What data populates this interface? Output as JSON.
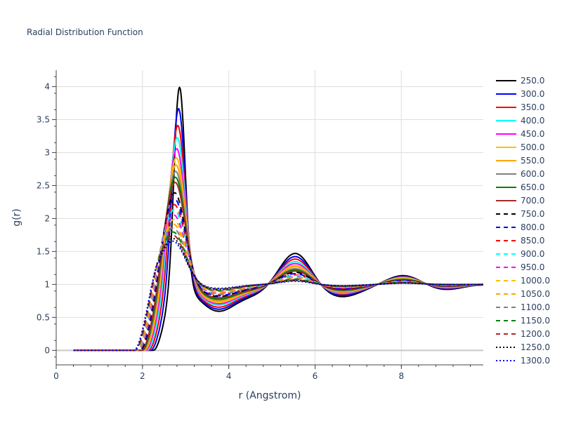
{
  "chart_data": {
    "type": "line",
    "title": "Radial Distribution Function",
    "xlabel": "r (Angstrom)",
    "ylabel": "g(r)",
    "xlim": [
      0,
      9.9
    ],
    "ylim": [
      -0.22,
      4.25
    ],
    "x_ticks": [
      0,
      2,
      4,
      6,
      8
    ],
    "y_ticks": [
      0,
      0.5,
      1,
      1.5,
      2,
      2.5,
      3,
      3.5,
      4
    ],
    "y_tick_labels": [
      "0",
      "0.5",
      "1",
      "1.5",
      "2",
      "2.5",
      "3",
      "3.5",
      "4"
    ],
    "grid": true,
    "legend_position": "right",
    "series": [
      {
        "name": "250.0",
        "color": "#000000",
        "dash": "solid",
        "peak1": 4.03,
        "trough1": 0.6,
        "peak2": 1.49,
        "trough2": 0.81,
        "peak3": 1.14
      },
      {
        "name": "300.0",
        "color": "#0000ff",
        "dash": "solid",
        "peak1": 3.7,
        "trough1": 0.63,
        "peak2": 1.44,
        "trough2": 0.83,
        "peak3": 1.13
      },
      {
        "name": "350.0",
        "color": "#ff0000",
        "dash": "solid",
        "peak1": 3.44,
        "trough1": 0.66,
        "peak2": 1.4,
        "trough2": 0.85,
        "peak3": 1.12
      },
      {
        "name": "400.0",
        "color": "#00ffff",
        "dash": "solid",
        "peak1": 3.25,
        "trough1": 0.69,
        "peak2": 1.36,
        "trough2": 0.86,
        "peak3": 1.11
      },
      {
        "name": "450.0",
        "color": "#ff00ff",
        "dash": "solid",
        "peak1": 3.08,
        "trough1": 0.71,
        "peak2": 1.33,
        "trough2": 0.87,
        "peak3": 1.1
      },
      {
        "name": "500.0",
        "color": "#ffbf00",
        "dash": "solid",
        "peak1": 2.94,
        "trough1": 0.73,
        "peak2": 1.3,
        "trough2": 0.88,
        "peak3": 1.1
      },
      {
        "name": "550.0",
        "color": "#ffa500",
        "dash": "solid",
        "peak1": 2.83,
        "trough1": 0.75,
        "peak2": 1.28,
        "trough2": 0.89,
        "peak3": 1.09
      },
      {
        "name": "600.0",
        "color": "#808080",
        "dash": "solid",
        "peak1": 2.73,
        "trough1": 0.77,
        "peak2": 1.25,
        "trough2": 0.9,
        "peak3": 1.08
      },
      {
        "name": "650.0",
        "color": "#008000",
        "dash": "solid",
        "peak1": 2.64,
        "trough1": 0.78,
        "peak2": 1.23,
        "trough2": 0.91,
        "peak3": 1.08
      },
      {
        "name": "700.0",
        "color": "#a52a2a",
        "dash": "solid",
        "peak1": 2.56,
        "trough1": 0.8,
        "peak2": 1.21,
        "trough2": 0.92,
        "peak3": 1.07
      },
      {
        "name": "750.0",
        "color": "#000000",
        "dash": "dash",
        "peak1": 2.4,
        "trough1": 0.82,
        "peak2": 1.19,
        "trough2": 0.93,
        "peak3": 1.06
      },
      {
        "name": "800.0",
        "color": "#0000ff",
        "dash": "dash",
        "peak1": 2.31,
        "trough1": 0.83,
        "peak2": 1.17,
        "trough2": 0.93,
        "peak3": 1.06
      },
      {
        "name": "850.0",
        "color": "#ff0000",
        "dash": "dash",
        "peak1": 2.22,
        "trough1": 0.85,
        "peak2": 1.15,
        "trough2": 0.94,
        "peak3": 1.05
      },
      {
        "name": "900.0",
        "color": "#00ffff",
        "dash": "dash",
        "peak1": 2.14,
        "trough1": 0.86,
        "peak2": 1.14,
        "trough2": 0.95,
        "peak3": 1.05
      },
      {
        "name": "950.0",
        "color": "#ff00ff",
        "dash": "dash",
        "peak1": 2.06,
        "trough1": 0.87,
        "peak2": 1.12,
        "trough2": 0.95,
        "peak3": 1.04
      },
      {
        "name": "1000.0",
        "color": "#ffbf00",
        "dash": "dash",
        "peak1": 1.99,
        "trough1": 0.88,
        "peak2": 1.11,
        "trough2": 0.96,
        "peak3": 1.04
      },
      {
        "name": "1050.0",
        "color": "#ffa500",
        "dash": "dash",
        "peak1": 1.92,
        "trough1": 0.89,
        "peak2": 1.1,
        "trough2": 0.96,
        "peak3": 1.04
      },
      {
        "name": "1100.0",
        "color": "#808080",
        "dash": "dash",
        "peak1": 1.86,
        "trough1": 0.9,
        "peak2": 1.09,
        "trough2": 0.97,
        "peak3": 1.03
      },
      {
        "name": "1150.0",
        "color": "#008000",
        "dash": "dash",
        "peak1": 1.8,
        "trough1": 0.91,
        "peak2": 1.08,
        "trough2": 0.97,
        "peak3": 1.03
      },
      {
        "name": "1200.0",
        "color": "#a52a2a",
        "dash": "dash",
        "peak1": 1.75,
        "trough1": 0.92,
        "peak2": 1.07,
        "trough2": 0.97,
        "peak3": 1.03
      },
      {
        "name": "1250.0",
        "color": "#000000",
        "dash": "dot",
        "peak1": 1.7,
        "trough1": 0.93,
        "peak2": 1.06,
        "trough2": 0.98,
        "peak3": 1.02
      },
      {
        "name": "1300.0",
        "color": "#0000ff",
        "dash": "dot",
        "peak1": 1.66,
        "trough1": 0.94,
        "peak2": 1.05,
        "trough2": 0.98,
        "peak3": 1.02
      }
    ]
  }
}
